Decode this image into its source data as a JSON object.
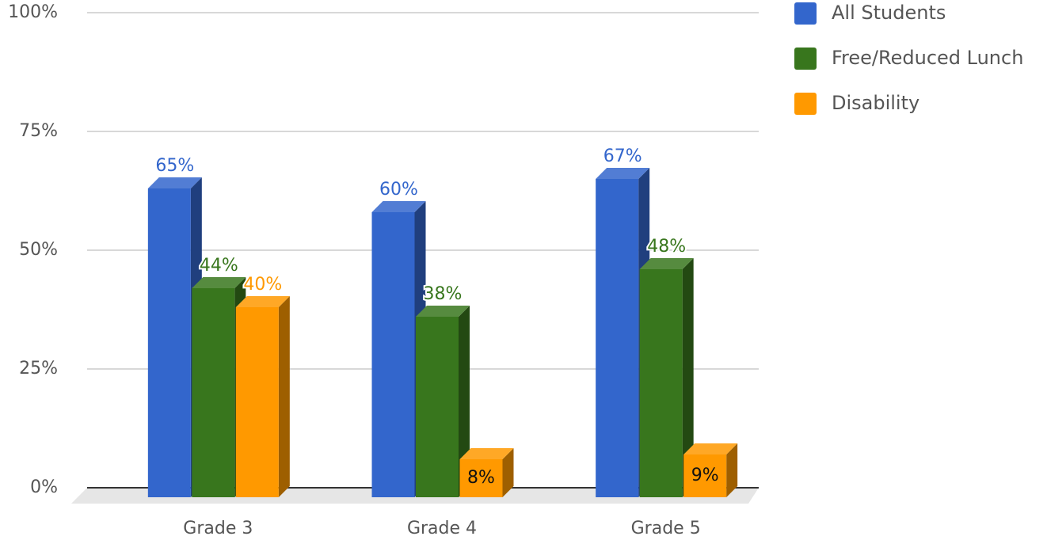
{
  "chart_data": {
    "type": "bar3d",
    "categories": [
      "Grade 3",
      "Grade 4",
      "Grade 5"
    ],
    "series": [
      {
        "name": "All Students",
        "color": "#3366cc",
        "values": [
          65,
          60,
          67
        ],
        "value_labels": [
          "65%",
          "60%",
          "67%"
        ]
      },
      {
        "name": "Free/Reduced Lunch",
        "color": "#38761d",
        "values": [
          44,
          38,
          48
        ],
        "value_labels": [
          "44%",
          "38%",
          "48%"
        ]
      },
      {
        "name": "Disability",
        "color": "#ff9900",
        "values": [
          40,
          8,
          9
        ],
        "value_labels": [
          "40%",
          "8%",
          "9%"
        ]
      }
    ],
    "ylim": [
      0,
      100
    ],
    "yticks": [
      {
        "value": 0,
        "label": "0%"
      },
      {
        "value": 25,
        "label": "25%"
      },
      {
        "value": 50,
        "label": "50%"
      },
      {
        "value": 75,
        "label": "75%"
      },
      {
        "value": 100,
        "label": "100%"
      }
    ],
    "grid": true,
    "legend": "right"
  }
}
